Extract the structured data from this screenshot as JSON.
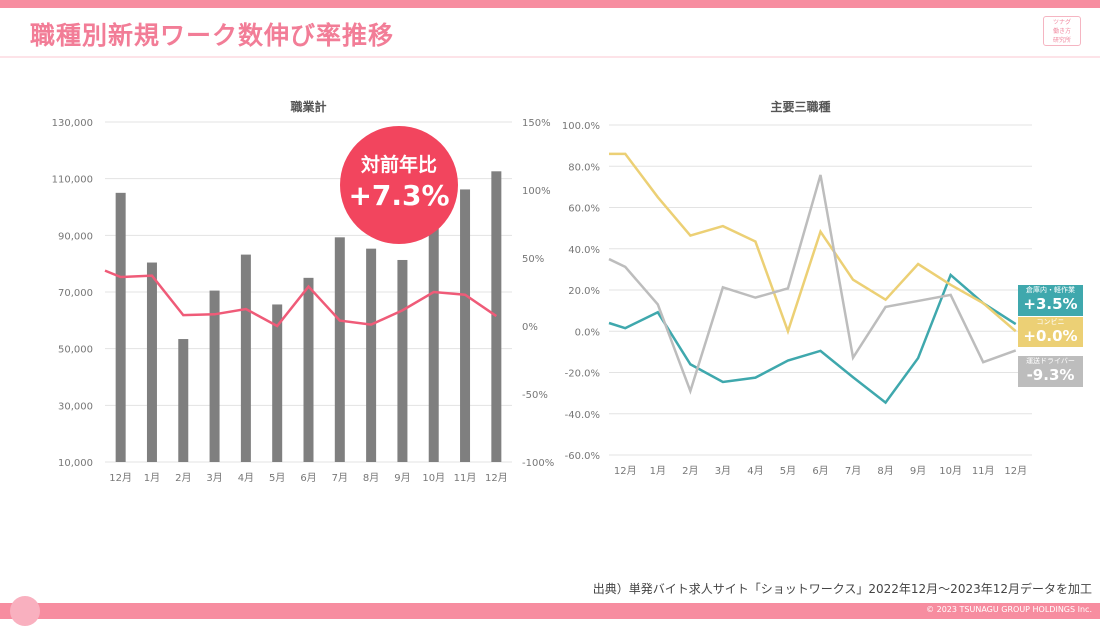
{
  "header": {
    "title": "職種別新規ワーク数伸び率推移",
    "logo_text": "ツナグ働き方研究所"
  },
  "badge": {
    "label": "対前年比",
    "value": "+7.3%"
  },
  "source": "出典）単発バイト求人サイト「ショットワークス」2022年12月〜2023年12月データを加工",
  "copyright": "© 2023 TSUNAGU GROUP HOLDINGS Inc.",
  "tags": [
    {
      "name": "倉庫内・軽作業",
      "value": "+3.5%",
      "color": "#3fa8ad"
    },
    {
      "name": "コンビニ",
      "value": "+0.0%",
      "color": "#ecd075"
    },
    {
      "name": "運送ドライバー",
      "value": "-9.3%",
      "color": "#bdbdbd"
    }
  ],
  "chart_data": [
    {
      "type": "bar+line",
      "title": "職業計",
      "categories": [
        "12月",
        "1月",
        "2月",
        "3月",
        "4月",
        "5月",
        "6月",
        "7月",
        "8月",
        "9月",
        "10月",
        "11月",
        "12月"
      ],
      "y_left": {
        "range": [
          10000,
          130000
        ],
        "ticks": [
          "10,000",
          "30,000",
          "50,000",
          "70,000",
          "90,000",
          "110,000",
          "130,000"
        ]
      },
      "y_right": {
        "range": [
          -100,
          150
        ],
        "ticks": [
          "-100%",
          "-50%",
          "0%",
          "50%",
          "100%",
          "150%"
        ]
      },
      "bars": {
        "values": [
          105000,
          80400,
          53400,
          70500,
          83200,
          65600,
          75000,
          89300,
          85300,
          81300,
          98000,
          106200,
          112600
        ],
        "color": "#7f7f7f"
      },
      "line": {
        "values": [
          36,
          37,
          8,
          8.6,
          12.5,
          0,
          29,
          4,
          1,
          11.5,
          25,
          23,
          7.3
        ],
        "lead_value": 40.7,
        "color": "#ef5b78"
      },
      "grid": true
    },
    {
      "type": "line",
      "title": "主要三職種",
      "categories": [
        "12月",
        "1月",
        "2月",
        "3月",
        "4月",
        "5月",
        "6月",
        "7月",
        "8月",
        "9月",
        "10月",
        "11月",
        "12月"
      ],
      "y": {
        "range": [
          -60,
          100
        ],
        "ticks": [
          "-60.0%",
          "-40.0%",
          "-20.0%",
          "0.0%",
          "20.0%",
          "40.0%",
          "60.0%",
          "80.0%",
          "100.0%"
        ]
      },
      "series": [
        {
          "name": "倉庫内・軽作業",
          "color": "#3fa8ad",
          "lead_value": 4,
          "values": [
            1.5,
            9.2,
            -16,
            -24.6,
            -22.5,
            -14.2,
            -9.5,
            -22.3,
            -34.6,
            -13,
            27.3,
            13.6,
            3.5
          ]
        },
        {
          "name": "コンビニ",
          "color": "#ecd075",
          "lead_value": 86,
          "values": [
            86,
            65,
            46.4,
            51,
            43.5,
            0,
            48.3,
            25,
            15.3,
            32.6,
            22.5,
            13.6,
            0
          ]
        },
        {
          "name": "運送ドライバー",
          "color": "#bdbdbd",
          "lead_value": 35,
          "values": [
            31.2,
            13,
            -29,
            21.3,
            16.3,
            20.8,
            75.8,
            -12.8,
            11.8,
            14.7,
            17.6,
            -15,
            -9.3
          ]
        }
      ],
      "grid": true
    }
  ]
}
